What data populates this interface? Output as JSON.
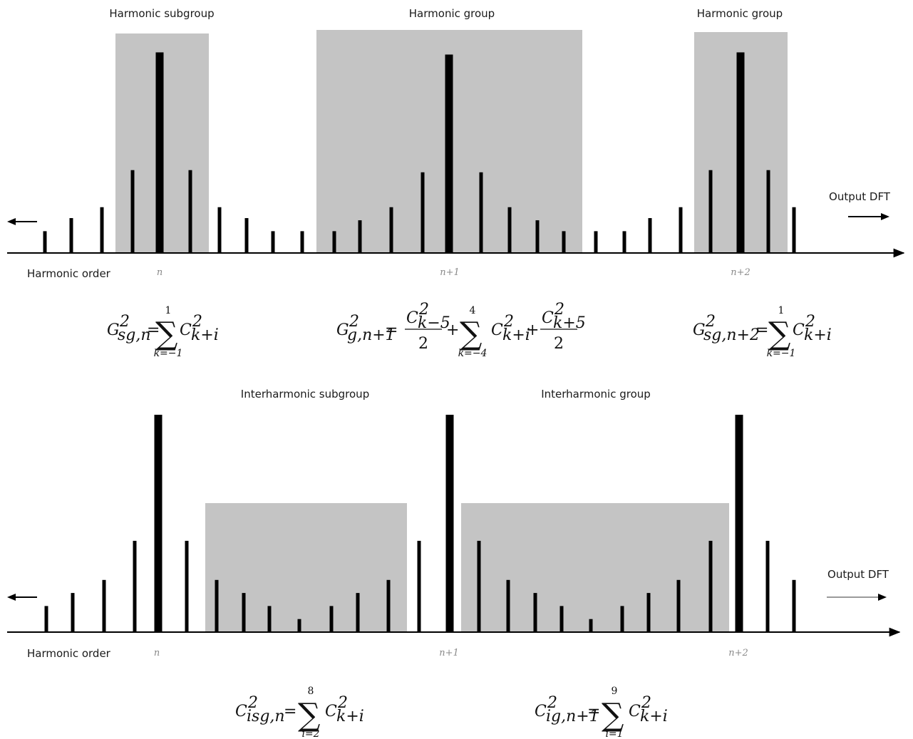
{
  "top_panel": {
    "region_labels": [
      "Harmonic subgroup",
      "Harmonic group",
      "Harmonic group"
    ],
    "axis_label": "Harmonic order",
    "output_label": "Output DFT",
    "order_ticks": [
      "n",
      "n+1",
      "n+2"
    ],
    "formulas": {
      "f1": {
        "G": "G",
        "sup": "2",
        "sub": "sg,n",
        "eq": "=",
        "upper": "1",
        "lower": "k=−1",
        "term": "C",
        "term_sup": "2",
        "term_sub": "k+i"
      },
      "f2": {
        "G": "G",
        "sup": "2",
        "sub": "g,n+1",
        "eq": "=",
        "frac1_num": "C",
        "frac1_num_sup": "2",
        "frac1_num_sub": "k−5",
        "frac1_den": "2",
        "plus": "+",
        "upper": "4",
        "lower": "k=−4",
        "term": "C",
        "term_sup": "2",
        "term_sub": "k+i",
        "frac2_num": "C",
        "frac2_num_sup": "2",
        "frac2_num_sub": "k+5",
        "frac2_den": "2"
      },
      "f3": {
        "G": "G",
        "sup": "2",
        "sub": "sg,n+2",
        "eq": "=",
        "upper": "1",
        "lower": "k=−1",
        "term": "C",
        "term_sup": "2",
        "term_sub": "k+i"
      }
    },
    "spectral_lines": [
      {
        "h": 0.1,
        "bold": false
      },
      {
        "h": 0.16,
        "bold": false
      },
      {
        "h": 0.21,
        "bold": false
      },
      {
        "h": 0.38,
        "bold": false
      },
      {
        "h": 0.92,
        "bold": true
      },
      {
        "h": 0.38,
        "bold": false
      },
      {
        "h": 0.21,
        "bold": false
      },
      {
        "h": 0.16,
        "bold": false
      },
      {
        "h": 0.1,
        "bold": false
      },
      {
        "h": 0.1,
        "bold": false
      },
      {
        "h": 0.1,
        "bold": false
      },
      {
        "h": 0.15,
        "bold": false
      },
      {
        "h": 0.21,
        "bold": false
      },
      {
        "h": 0.37,
        "bold": false
      },
      {
        "h": 0.91,
        "bold": true
      },
      {
        "h": 0.37,
        "bold": false
      },
      {
        "h": 0.21,
        "bold": false
      },
      {
        "h": 0.15,
        "bold": false
      },
      {
        "h": 0.1,
        "bold": false
      },
      {
        "h": 0.1,
        "bold": false
      },
      {
        "h": 0.1,
        "bold": false
      },
      {
        "h": 0.16,
        "bold": false
      },
      {
        "h": 0.21,
        "bold": false
      },
      {
        "h": 0.38,
        "bold": false
      },
      {
        "h": 0.92,
        "bold": true
      },
      {
        "h": 0.38,
        "bold": false
      },
      {
        "h": 0.21,
        "bold": false
      }
    ]
  },
  "bottom_panel": {
    "region_labels": [
      "Interharmonic subgroup",
      "Interharmonic group"
    ],
    "axis_label": "Harmonic order",
    "output_label": "Output DFT",
    "order_ticks": [
      "n",
      "n+1",
      "n+2"
    ],
    "formulas": {
      "f1": {
        "C": "C",
        "sup": "2",
        "sub": "isg,n",
        "eq": "=",
        "upper": "8",
        "lower": "i=2",
        "term": "C",
        "term_sup": "2",
        "term_sub": "k+i"
      },
      "f2": {
        "C": "C",
        "sup": "2",
        "sub": "ig,n+1",
        "eq": "=",
        "upper": "9",
        "lower": "i=1",
        "term": "C",
        "term_sup": "2",
        "term_sub": "k+i"
      }
    },
    "spectral_lines": [
      {
        "h": 0.12
      },
      {
        "h": 0.18
      },
      {
        "h": 0.24
      },
      {
        "h": 0.42
      },
      {
        "h": 1.0,
        "bold": true
      },
      {
        "h": 0.42
      },
      {
        "h": 0.24
      },
      {
        "h": 0.18
      },
      {
        "h": 0.12
      },
      {
        "h": 0.06
      },
      {
        "h": 0.12
      },
      {
        "h": 0.18
      },
      {
        "h": 0.24
      },
      {
        "h": 0.42
      },
      {
        "h": 1.0,
        "bold": true
      },
      {
        "h": 0.42
      },
      {
        "h": 0.24
      },
      {
        "h": 0.18
      },
      {
        "h": 0.12
      },
      {
        "h": 0.06
      },
      {
        "h": 0.12
      },
      {
        "h": 0.18
      },
      {
        "h": 0.24
      },
      {
        "h": 0.42
      },
      {
        "h": 1.0,
        "bold": true
      },
      {
        "h": 0.42
      },
      {
        "h": 0.24
      }
    ]
  }
}
